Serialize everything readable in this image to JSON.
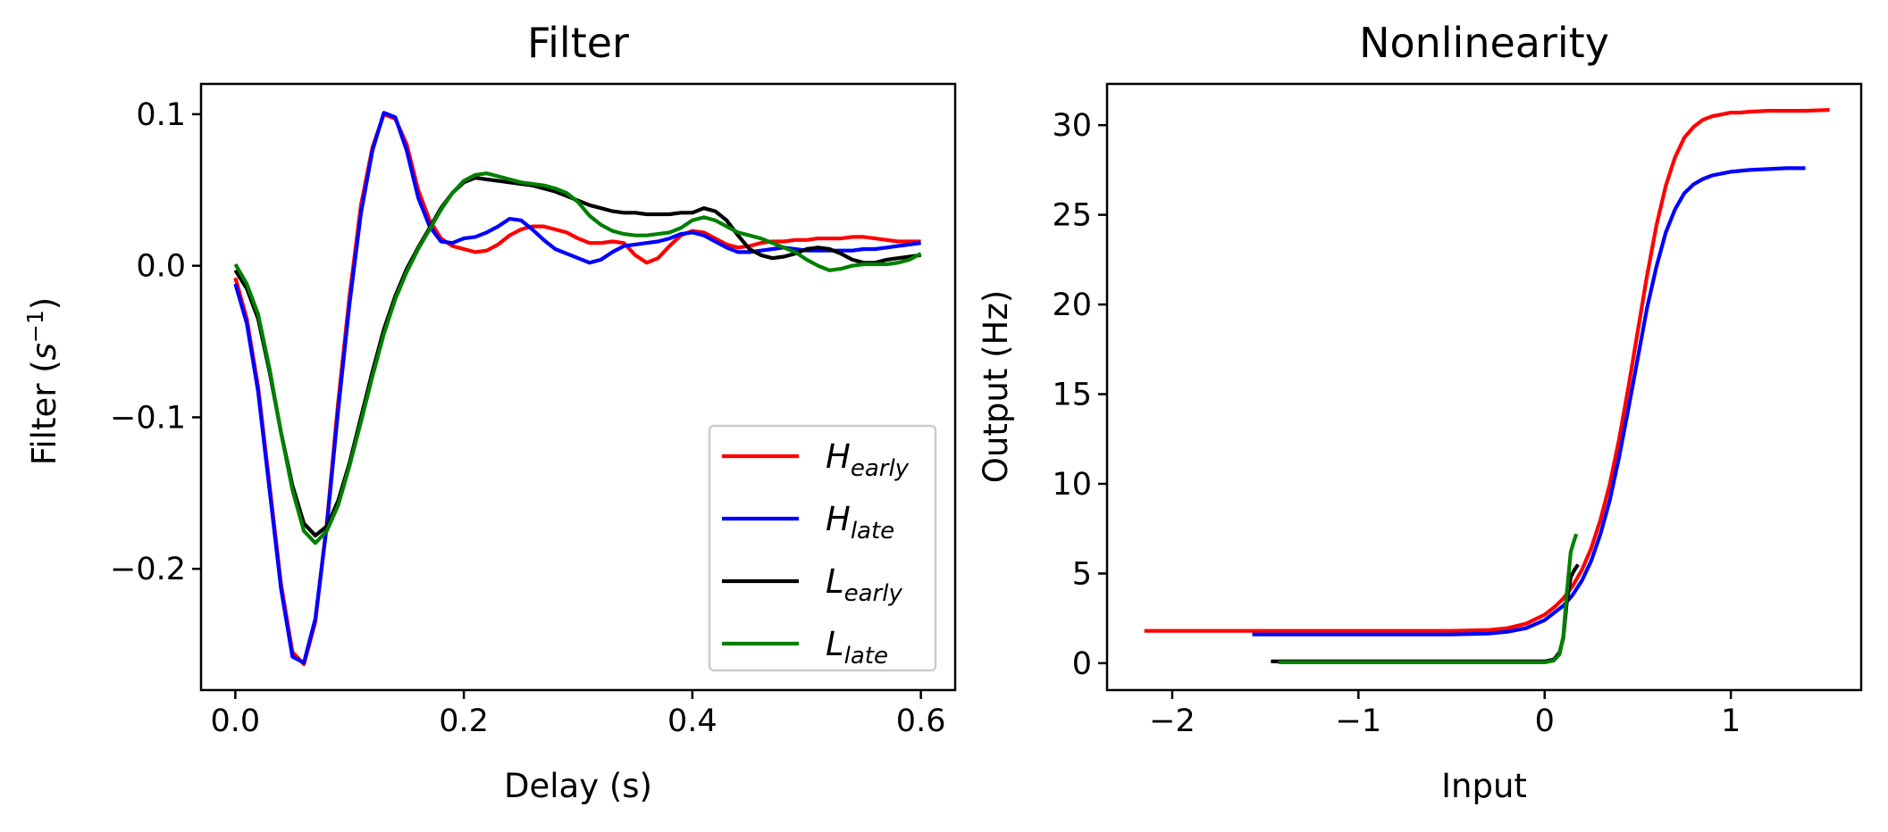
{
  "chart_data": [
    {
      "type": "line",
      "title": "Filter",
      "xlabel": "Delay (s)",
      "ylabel_text": "Filter (",
      "ylabel_math": "s",
      "ylabel_sup": "−1",
      "ylabel_close": ")",
      "xlim": [
        -0.03,
        0.63
      ],
      "ylim": [
        -0.28,
        0.12
      ],
      "xticks": [
        0.0,
        0.2,
        0.4,
        0.6
      ],
      "xtick_labels": [
        "0.0",
        "0.2",
        "0.4",
        "0.6"
      ],
      "yticks": [
        -0.2,
        -0.1,
        0.0,
        0.1
      ],
      "ytick_labels": [
        "−0.2",
        "−0.1",
        "0.0",
        "0.1"
      ],
      "legend_position": "lower-right",
      "series": [
        {
          "name": "H_early",
          "legend_main": "H",
          "legend_sub": "early",
          "color": "#ff0000",
          "x": [
            0.0,
            0.01,
            0.02,
            0.03,
            0.04,
            0.05,
            0.06,
            0.07,
            0.08,
            0.09,
            0.1,
            0.11,
            0.12,
            0.13,
            0.14,
            0.15,
            0.16,
            0.17,
            0.18,
            0.19,
            0.2,
            0.21,
            0.22,
            0.23,
            0.24,
            0.25,
            0.26,
            0.27,
            0.28,
            0.29,
            0.3,
            0.31,
            0.32,
            0.33,
            0.34,
            0.35,
            0.36,
            0.37,
            0.38,
            0.39,
            0.4,
            0.41,
            0.42,
            0.43,
            0.44,
            0.45,
            0.46,
            0.47,
            0.48,
            0.49,
            0.5,
            0.51,
            0.52,
            0.53,
            0.54,
            0.55,
            0.56,
            0.57,
            0.58,
            0.59,
            0.6
          ],
          "y": [
            -0.008,
            -0.035,
            -0.08,
            -0.145,
            -0.21,
            -0.255,
            -0.263,
            -0.235,
            -0.17,
            -0.09,
            -0.02,
            0.04,
            0.078,
            0.1,
            0.097,
            0.08,
            0.05,
            0.03,
            0.018,
            0.013,
            0.011,
            0.009,
            0.01,
            0.014,
            0.02,
            0.024,
            0.026,
            0.026,
            0.024,
            0.022,
            0.018,
            0.015,
            0.015,
            0.016,
            0.015,
            0.007,
            0.002,
            0.005,
            0.013,
            0.02,
            0.023,
            0.022,
            0.018,
            0.014,
            0.012,
            0.013,
            0.015,
            0.016,
            0.016,
            0.017,
            0.017,
            0.018,
            0.018,
            0.018,
            0.019,
            0.019,
            0.018,
            0.017,
            0.016,
            0.016,
            0.016
          ]
        },
        {
          "name": "H_late",
          "legend_main": "H",
          "legend_sub": "late",
          "color": "#0000ff",
          "x": [
            0.0,
            0.01,
            0.02,
            0.03,
            0.04,
            0.05,
            0.06,
            0.07,
            0.08,
            0.09,
            0.1,
            0.11,
            0.12,
            0.13,
            0.14,
            0.15,
            0.16,
            0.17,
            0.18,
            0.19,
            0.2,
            0.21,
            0.22,
            0.23,
            0.24,
            0.25,
            0.26,
            0.27,
            0.28,
            0.29,
            0.3,
            0.31,
            0.32,
            0.33,
            0.34,
            0.35,
            0.36,
            0.37,
            0.38,
            0.39,
            0.4,
            0.41,
            0.42,
            0.43,
            0.44,
            0.45,
            0.46,
            0.47,
            0.48,
            0.49,
            0.5,
            0.51,
            0.52,
            0.53,
            0.54,
            0.55,
            0.56,
            0.57,
            0.58,
            0.59,
            0.6
          ],
          "y": [
            -0.012,
            -0.038,
            -0.083,
            -0.148,
            -0.213,
            -0.258,
            -0.262,
            -0.233,
            -0.172,
            -0.095,
            -0.025,
            0.035,
            0.076,
            0.101,
            0.098,
            0.076,
            0.045,
            0.026,
            0.016,
            0.015,
            0.018,
            0.019,
            0.022,
            0.026,
            0.031,
            0.03,
            0.024,
            0.017,
            0.011,
            0.008,
            0.005,
            0.002,
            0.004,
            0.009,
            0.013,
            0.014,
            0.015,
            0.016,
            0.018,
            0.021,
            0.022,
            0.02,
            0.016,
            0.012,
            0.009,
            0.009,
            0.01,
            0.011,
            0.012,
            0.011,
            0.01,
            0.01,
            0.01,
            0.01,
            0.01,
            0.011,
            0.011,
            0.012,
            0.013,
            0.014,
            0.015
          ]
        },
        {
          "name": "L_early",
          "legend_main": "L",
          "legend_sub": "early",
          "color": "#000000",
          "x": [
            0.0,
            0.01,
            0.02,
            0.03,
            0.04,
            0.05,
            0.06,
            0.07,
            0.08,
            0.09,
            0.1,
            0.11,
            0.12,
            0.13,
            0.14,
            0.15,
            0.16,
            0.17,
            0.18,
            0.19,
            0.2,
            0.21,
            0.22,
            0.23,
            0.24,
            0.25,
            0.26,
            0.27,
            0.28,
            0.29,
            0.3,
            0.31,
            0.32,
            0.33,
            0.34,
            0.35,
            0.36,
            0.37,
            0.38,
            0.39,
            0.4,
            0.41,
            0.42,
            0.43,
            0.44,
            0.45,
            0.46,
            0.47,
            0.48,
            0.49,
            0.5,
            0.51,
            0.52,
            0.53,
            0.54,
            0.55,
            0.56,
            0.57,
            0.58,
            0.59,
            0.6
          ],
          "y": [
            -0.003,
            -0.015,
            -0.035,
            -0.07,
            -0.11,
            -0.145,
            -0.17,
            -0.178,
            -0.172,
            -0.155,
            -0.13,
            -0.1,
            -0.07,
            -0.042,
            -0.02,
            -0.002,
            0.012,
            0.025,
            0.038,
            0.048,
            0.055,
            0.058,
            0.057,
            0.056,
            0.055,
            0.054,
            0.053,
            0.051,
            0.049,
            0.046,
            0.043,
            0.04,
            0.038,
            0.036,
            0.035,
            0.035,
            0.034,
            0.034,
            0.034,
            0.035,
            0.035,
            0.038,
            0.036,
            0.03,
            0.02,
            0.011,
            0.007,
            0.005,
            0.006,
            0.008,
            0.011,
            0.012,
            0.011,
            0.008,
            0.004,
            0.002,
            0.002,
            0.004,
            0.005,
            0.006,
            0.007
          ]
        },
        {
          "name": "L_late",
          "legend_main": "L",
          "legend_sub": "late",
          "color": "#008000",
          "x": [
            0.0,
            0.01,
            0.02,
            0.03,
            0.04,
            0.05,
            0.06,
            0.07,
            0.08,
            0.09,
            0.1,
            0.11,
            0.12,
            0.13,
            0.14,
            0.15,
            0.16,
            0.17,
            0.18,
            0.19,
            0.2,
            0.21,
            0.22,
            0.23,
            0.24,
            0.25,
            0.26,
            0.27,
            0.28,
            0.29,
            0.3,
            0.31,
            0.32,
            0.33,
            0.34,
            0.35,
            0.36,
            0.37,
            0.38,
            0.39,
            0.4,
            0.41,
            0.42,
            0.43,
            0.44,
            0.45,
            0.46,
            0.47,
            0.48,
            0.49,
            0.5,
            0.51,
            0.52,
            0.53,
            0.54,
            0.55,
            0.56,
            0.57,
            0.58,
            0.59,
            0.6
          ],
          "y": [
            0.001,
            -0.012,
            -0.032,
            -0.068,
            -0.11,
            -0.148,
            -0.175,
            -0.183,
            -0.175,
            -0.158,
            -0.132,
            -0.103,
            -0.073,
            -0.045,
            -0.022,
            -0.004,
            0.011,
            0.024,
            0.037,
            0.048,
            0.056,
            0.06,
            0.061,
            0.059,
            0.057,
            0.055,
            0.054,
            0.053,
            0.051,
            0.048,
            0.042,
            0.033,
            0.027,
            0.023,
            0.021,
            0.02,
            0.02,
            0.021,
            0.022,
            0.025,
            0.03,
            0.032,
            0.03,
            0.026,
            0.022,
            0.02,
            0.018,
            0.015,
            0.012,
            0.009,
            0.004,
            0.0,
            -0.003,
            -0.002,
            0.0,
            0.001,
            0.001,
            0.001,
            0.002,
            0.004,
            0.008
          ]
        }
      ]
    },
    {
      "type": "line",
      "title": "Nonlinearity",
      "xlabel": "Input",
      "ylabel": "Output (Hz)",
      "xlim": [
        -2.35,
        1.7
      ],
      "ylim": [
        -1.5,
        32.3
      ],
      "xticks": [
        -2,
        -1,
        0,
        1
      ],
      "xtick_labels": [
        "−2",
        "−1",
        "0",
        "1"
      ],
      "yticks": [
        0,
        5,
        10,
        15,
        20,
        25,
        30
      ],
      "ytick_labels": [
        "0",
        "5",
        "10",
        "15",
        "20",
        "25",
        "30"
      ],
      "series": [
        {
          "name": "H_early",
          "color": "#ff0000",
          "x": [
            -2.15,
            -1.5,
            -1.0,
            -0.5,
            -0.3,
            -0.2,
            -0.1,
            0.0,
            0.05,
            0.1,
            0.15,
            0.2,
            0.25,
            0.3,
            0.35,
            0.4,
            0.45,
            0.5,
            0.55,
            0.6,
            0.65,
            0.7,
            0.75,
            0.8,
            0.85,
            0.9,
            0.95,
            1.0,
            1.05,
            1.1,
            1.2,
            1.3,
            1.4,
            1.53
          ],
          "y": [
            1.8,
            1.8,
            1.8,
            1.8,
            1.85,
            1.95,
            2.2,
            2.7,
            3.1,
            3.6,
            4.3,
            5.2,
            6.4,
            8.0,
            10.0,
            12.5,
            15.4,
            18.5,
            21.6,
            24.4,
            26.6,
            28.2,
            29.3,
            29.9,
            30.3,
            30.5,
            30.6,
            30.7,
            30.7,
            30.75,
            30.8,
            30.8,
            30.8,
            30.85
          ]
        },
        {
          "name": "H_late",
          "color": "#0000ff",
          "x": [
            -1.57,
            -1.0,
            -0.5,
            -0.3,
            -0.2,
            -0.1,
            0.0,
            0.05,
            0.1,
            0.15,
            0.2,
            0.25,
            0.3,
            0.35,
            0.4,
            0.45,
            0.5,
            0.55,
            0.6,
            0.65,
            0.7,
            0.75,
            0.8,
            0.85,
            0.9,
            0.95,
            1.0,
            1.05,
            1.1,
            1.2,
            1.3,
            1.4
          ],
          "y": [
            1.6,
            1.6,
            1.6,
            1.65,
            1.75,
            1.95,
            2.4,
            2.8,
            3.2,
            3.8,
            4.6,
            5.7,
            7.2,
            9.1,
            11.5,
            14.2,
            17.0,
            19.8,
            22.1,
            24.0,
            25.3,
            26.2,
            26.7,
            27.0,
            27.2,
            27.3,
            27.4,
            27.45,
            27.5,
            27.55,
            27.6,
            27.6
          ]
        },
        {
          "name": "L_early",
          "color": "#000000",
          "x": [
            -1.47,
            -1.0,
            -0.5,
            0.0,
            0.05,
            0.08,
            0.1,
            0.12,
            0.14,
            0.16,
            0.18
          ],
          "y": [
            0.1,
            0.1,
            0.1,
            0.1,
            0.2,
            0.6,
            1.4,
            3.5,
            4.8,
            5.2,
            5.5
          ]
        },
        {
          "name": "L_late",
          "color": "#008000",
          "x": [
            -1.43,
            -1.0,
            -0.5,
            0.0,
            0.05,
            0.08,
            0.1,
            0.12,
            0.14,
            0.16,
            0.17
          ],
          "y": [
            0.05,
            0.05,
            0.05,
            0.05,
            0.15,
            0.5,
            1.5,
            4.0,
            6.2,
            6.9,
            7.2
          ]
        }
      ]
    }
  ]
}
